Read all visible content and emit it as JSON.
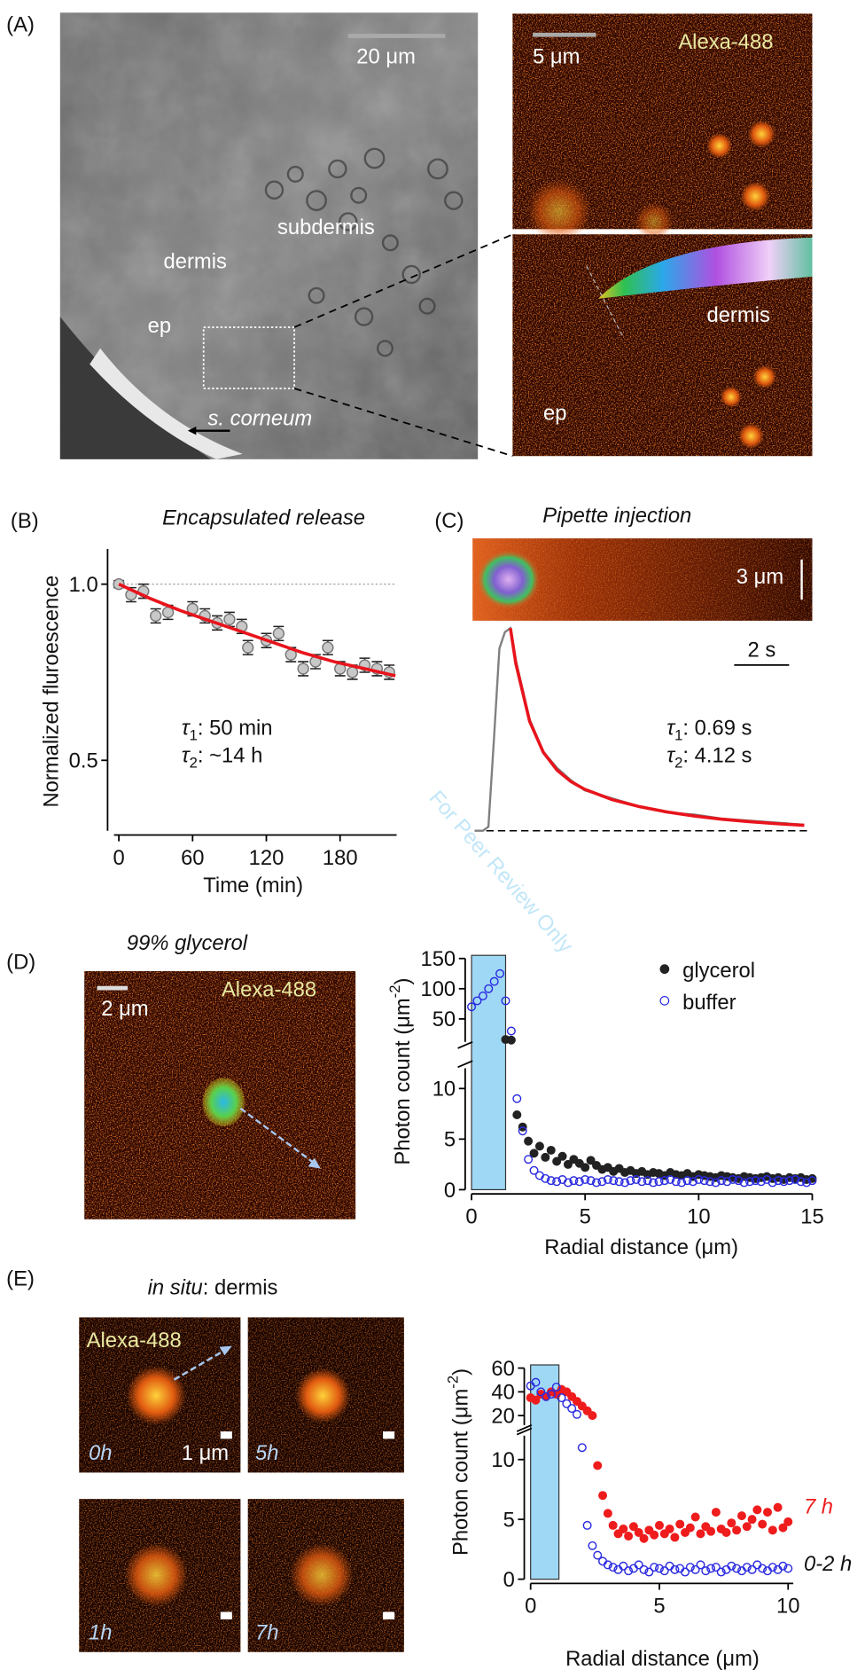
{
  "figure": {
    "watermark": "For Peer Review Only",
    "panel_A": {
      "letter": "(A)",
      "scale_bar_left": "20 μm",
      "labels": [
        "subdermis",
        "dermis",
        "ep"
      ],
      "corneum": "s. corneum",
      "scale_bar_right": "5 μm",
      "dye": "Alexa-488",
      "inset_labels": [
        "dermis",
        "ep"
      ]
    },
    "panel_C_image": {
      "scale_bar": "3 μm"
    },
    "panel_D": {
      "letter": "(D)",
      "title": "99% glycerol",
      "scale_bar": "2 μm",
      "dye": "Alexa-488"
    },
    "panel_E": {
      "letter": "(E)",
      "title_italic": "in situ",
      "title_rest": ": dermis",
      "dye": "Alexa-488",
      "scale_bar": "1 μm",
      "times": [
        "0h",
        "5h",
        "1h",
        "7h"
      ]
    }
  },
  "chart_data": [
    {
      "type": "scatter",
      "panel": "(B)",
      "title": "Encapsulated release",
      "x_label": "Time (min)",
      "y_label": "Normalized fluroescence",
      "xlim": [
        -4,
        226
      ],
      "ylim": [
        0.3,
        1.1
      ],
      "xticks": [
        0,
        60,
        120,
        180
      ],
      "yticks": [
        0.5,
        {
          "value": 1,
          "label": "1.0"
        }
      ],
      "reference_line": 1,
      "annotations": [
        {
          "symbol": "τ",
          "sub": "1",
          "text": ": 50 min"
        },
        {
          "symbol": "τ",
          "sub": "2",
          "text": ": ~14 h"
        }
      ],
      "series": [
        {
          "style": "filled",
          "color": "#c8c8c8",
          "x": [
            0,
            10,
            20,
            30,
            40,
            60,
            70,
            80,
            90,
            100,
            105,
            120,
            130,
            140,
            150,
            160,
            170,
            180,
            190,
            200,
            210,
            220
          ],
          "values": [
            1.0,
            0.97,
            0.98,
            0.91,
            0.92,
            0.93,
            0.91,
            0.89,
            0.9,
            0.88,
            0.82,
            0.84,
            0.86,
            0.8,
            0.76,
            0.78,
            0.82,
            0.76,
            0.75,
            0.77,
            0.76,
            0.75
          ],
          "errors": [
            0.01,
            0.02,
            0.02,
            0.02,
            0.02,
            0.02,
            0.02,
            0.02,
            0.02,
            0.02,
            0.02,
            0.02,
            0.02,
            0.02,
            0.02,
            0.02,
            0.02,
            0.02,
            0.02,
            0.02,
            0.02,
            0.02
          ]
        },
        {
          "style": "line",
          "color": "#e8141c",
          "x": [
            0,
            25,
            50,
            75,
            100,
            125,
            150,
            175,
            200,
            225
          ],
          "values": [
            1.0,
            0.96,
            0.925,
            0.895,
            0.865,
            0.835,
            0.805,
            0.78,
            0.76,
            0.74
          ]
        }
      ]
    },
    {
      "type": "line",
      "panel": "(C)",
      "title": "Pipette injection",
      "xlim": [
        0,
        12.1
      ],
      "ylim": [
        0,
        1
      ],
      "baseline": 0,
      "scale_bar": {
        "value": 2,
        "label": "2 s"
      },
      "annotations": [
        {
          "symbol": "τ",
          "sub": "1",
          "text": ": 0.69 s"
        },
        {
          "symbol": "τ",
          "sub": "2",
          "text": ": 4.12 s"
        }
      ],
      "series": [
        {
          "style": "line",
          "color": "#808080",
          "x": [
            0,
            0.3,
            0.5,
            0.7,
            0.9,
            1.1,
            1.3,
            1.5,
            2,
            2.5,
            3,
            3.5,
            4,
            5,
            6,
            7,
            8,
            9,
            10,
            11,
            12
          ],
          "values": [
            0,
            0,
            0.02,
            0.45,
            0.9,
            0.98,
            1.0,
            0.84,
            0.55,
            0.39,
            0.31,
            0.25,
            0.2,
            0.16,
            0.12,
            0.09,
            0.08,
            0.06,
            0.05,
            0.04,
            0.03
          ]
        },
        {
          "style": "line",
          "color": "#e8141c",
          "x": [
            1.3,
            1.5,
            2,
            2.5,
            3,
            3.5,
            4,
            5,
            6,
            7,
            8,
            9,
            10,
            11,
            12
          ],
          "values": [
            1.0,
            0.824,
            0.54,
            0.387,
            0.299,
            0.243,
            0.205,
            0.154,
            0.119,
            0.093,
            0.073,
            0.057,
            0.045,
            0.035,
            0.027
          ]
        }
      ]
    },
    {
      "type": "scatter",
      "x_label": "Radial distance (μm)",
      "y_label": {
        "text": "Photon count (μm",
        "sup": "-2",
        "after": ")"
      },
      "xlim": [
        0,
        15
      ],
      "ylim": [
        0,
        150
      ],
      "y_break": 12,
      "xticks": [
        0,
        5,
        10,
        15
      ],
      "yticks": [
        0,
        5,
        10,
        50,
        100,
        150
      ],
      "highlight_x": [
        0,
        1.5
      ],
      "legend": "top right",
      "x": [
        0,
        0.25,
        0.5,
        0.75,
        1,
        1.25,
        1.5,
        1.75,
        2,
        2.25,
        2.5,
        2.75,
        3,
        3.25,
        3.5,
        3.75,
        4,
        4.25,
        4.5,
        4.75,
        5,
        5.25,
        5.5,
        5.75,
        6,
        6.25,
        6.5,
        6.75,
        7,
        7.25,
        7.5,
        7.75,
        8,
        8.25,
        8.5,
        8.75,
        9,
        9.25,
        9.5,
        9.75,
        10,
        10.25,
        10.5,
        10.75,
        11,
        11.25,
        11.5,
        11.75,
        12,
        12.25,
        12.5,
        12.75,
        13,
        13.25,
        13.5,
        13.75,
        14,
        14.25,
        14.5,
        14.75,
        15
      ],
      "series": [
        {
          "name": "glycerol",
          "style": "filled",
          "color": "#222222",
          "values": [
            null,
            null,
            null,
            null,
            null,
            null,
            16,
            15,
            7.4,
            6.2,
            4.8,
            3.6,
            4.3,
            3.2,
            3.9,
            2.8,
            3.3,
            2.5,
            3.0,
            2.6,
            2.2,
            2.9,
            2.4,
            2.0,
            2.2,
            1.8,
            2.1,
            1.7,
            1.9,
            1.6,
            1.8,
            1.5,
            1.7,
            1.6,
            1.4,
            1.7,
            1.5,
            1.4,
            1.6,
            1.3,
            1.5,
            1.4,
            1.3,
            1.2,
            1.4,
            1.3,
            1.2,
            1.1,
            1.3,
            1.2,
            1.1,
            1.2,
            1.3,
            1.1,
            1.2,
            1.0,
            1.2,
            1.1,
            1.2,
            1.0,
            1.1
          ]
        },
        {
          "name": "buffer",
          "style": "open",
          "color": "#2a2ae0",
          "values": [
            70,
            80,
            88,
            100,
            112,
            125,
            80,
            30,
            9,
            5.8,
            3.0,
            1.9,
            1.4,
            1.1,
            0.9,
            0.8,
            1.0,
            0.7,
            0.9,
            0.8,
            1.0,
            0.9,
            0.7,
            0.8,
            1.0,
            0.9,
            0.8,
            0.7,
            0.9,
            1.0,
            0.8,
            0.9,
            0.7,
            0.8,
            0.9,
            1.0,
            0.8,
            0.7,
            0.9,
            0.8,
            1.0,
            0.9,
            0.8,
            0.7,
            0.9,
            0.8,
            1.0,
            0.9,
            0.7,
            0.8,
            0.9,
            0.8,
            1.0,
            0.7,
            0.9,
            0.8,
            0.9,
            1.0,
            0.8,
            0.7,
            0.9
          ]
        }
      ]
    },
    {
      "type": "scatter",
      "x_label": "Radial distance (μm)",
      "y_label": {
        "text": "Photon count  (μm",
        "sup": "-2",
        "after": ")"
      },
      "xlim": [
        0,
        10.2
      ],
      "ylim": [
        0,
        60
      ],
      "y_break": 12,
      "xticks": [
        0,
        5,
        10
      ],
      "yticks": [
        0,
        5,
        10,
        20,
        40,
        60
      ],
      "highlight_x": [
        0,
        1.1
      ],
      "legend": "right",
      "x": [
        0,
        0.2,
        0.4,
        0.6,
        0.8,
        1,
        1.2,
        1.4,
        1.6,
        1.8,
        2,
        2.2,
        2.4,
        2.6,
        2.8,
        3,
        3.2,
        3.4,
        3.6,
        3.8,
        4,
        4.2,
        4.4,
        4.6,
        4.8,
        5,
        5.2,
        5.4,
        5.6,
        5.8,
        6,
        6.2,
        6.4,
        6.6,
        6.8,
        7,
        7.2,
        7.4,
        7.6,
        7.8,
        8,
        8.2,
        8.4,
        8.6,
        8.8,
        9,
        9.2,
        9.4,
        9.6,
        9.8,
        10
      ],
      "series": [
        {
          "name": "7 h",
          "style": "filled",
          "color": "#ee1c1c",
          "values": [
            35,
            33,
            38,
            36,
            40,
            38,
            42,
            40,
            36,
            32,
            28,
            24,
            20,
            9.5,
            7,
            5.5,
            4.5,
            3.8,
            4.2,
            3.6,
            4.4,
            3.9,
            3.4,
            4.1,
            3.7,
            4.5,
            3.8,
            4.2,
            3.5,
            4.6,
            3.9,
            4.3,
            5.2,
            3.8,
            4.4,
            4.0,
            5.6,
            4.2,
            3.9,
            4.7,
            4.1,
            5.3,
            4.4,
            5.0,
            5.8,
            4.6,
            5.6,
            4.1,
            6.0,
            4.3,
            4.8
          ]
        },
        {
          "name": "0-2 h",
          "style": "open",
          "color": "#2a2ae0",
          "values": [
            45,
            48,
            40,
            36,
            38,
            44,
            35,
            30,
            26,
            21,
            11,
            4.5,
            2.8,
            2.0,
            1.5,
            1.2,
            1.0,
            0.8,
            1.1,
            0.7,
            0.9,
            1.2,
            0.8,
            0.6,
            1.0,
            0.9,
            0.7,
            1.1,
            0.8,
            0.9,
            0.6,
            1.0,
            0.8,
            1.2,
            0.7,
            0.9,
            1.0,
            0.6,
            0.8,
            1.1,
            0.9,
            0.7,
            1.0,
            0.8,
            1.2,
            0.9,
            0.7,
            1.0,
            0.8,
            1.1,
            0.9
          ]
        }
      ]
    }
  ]
}
